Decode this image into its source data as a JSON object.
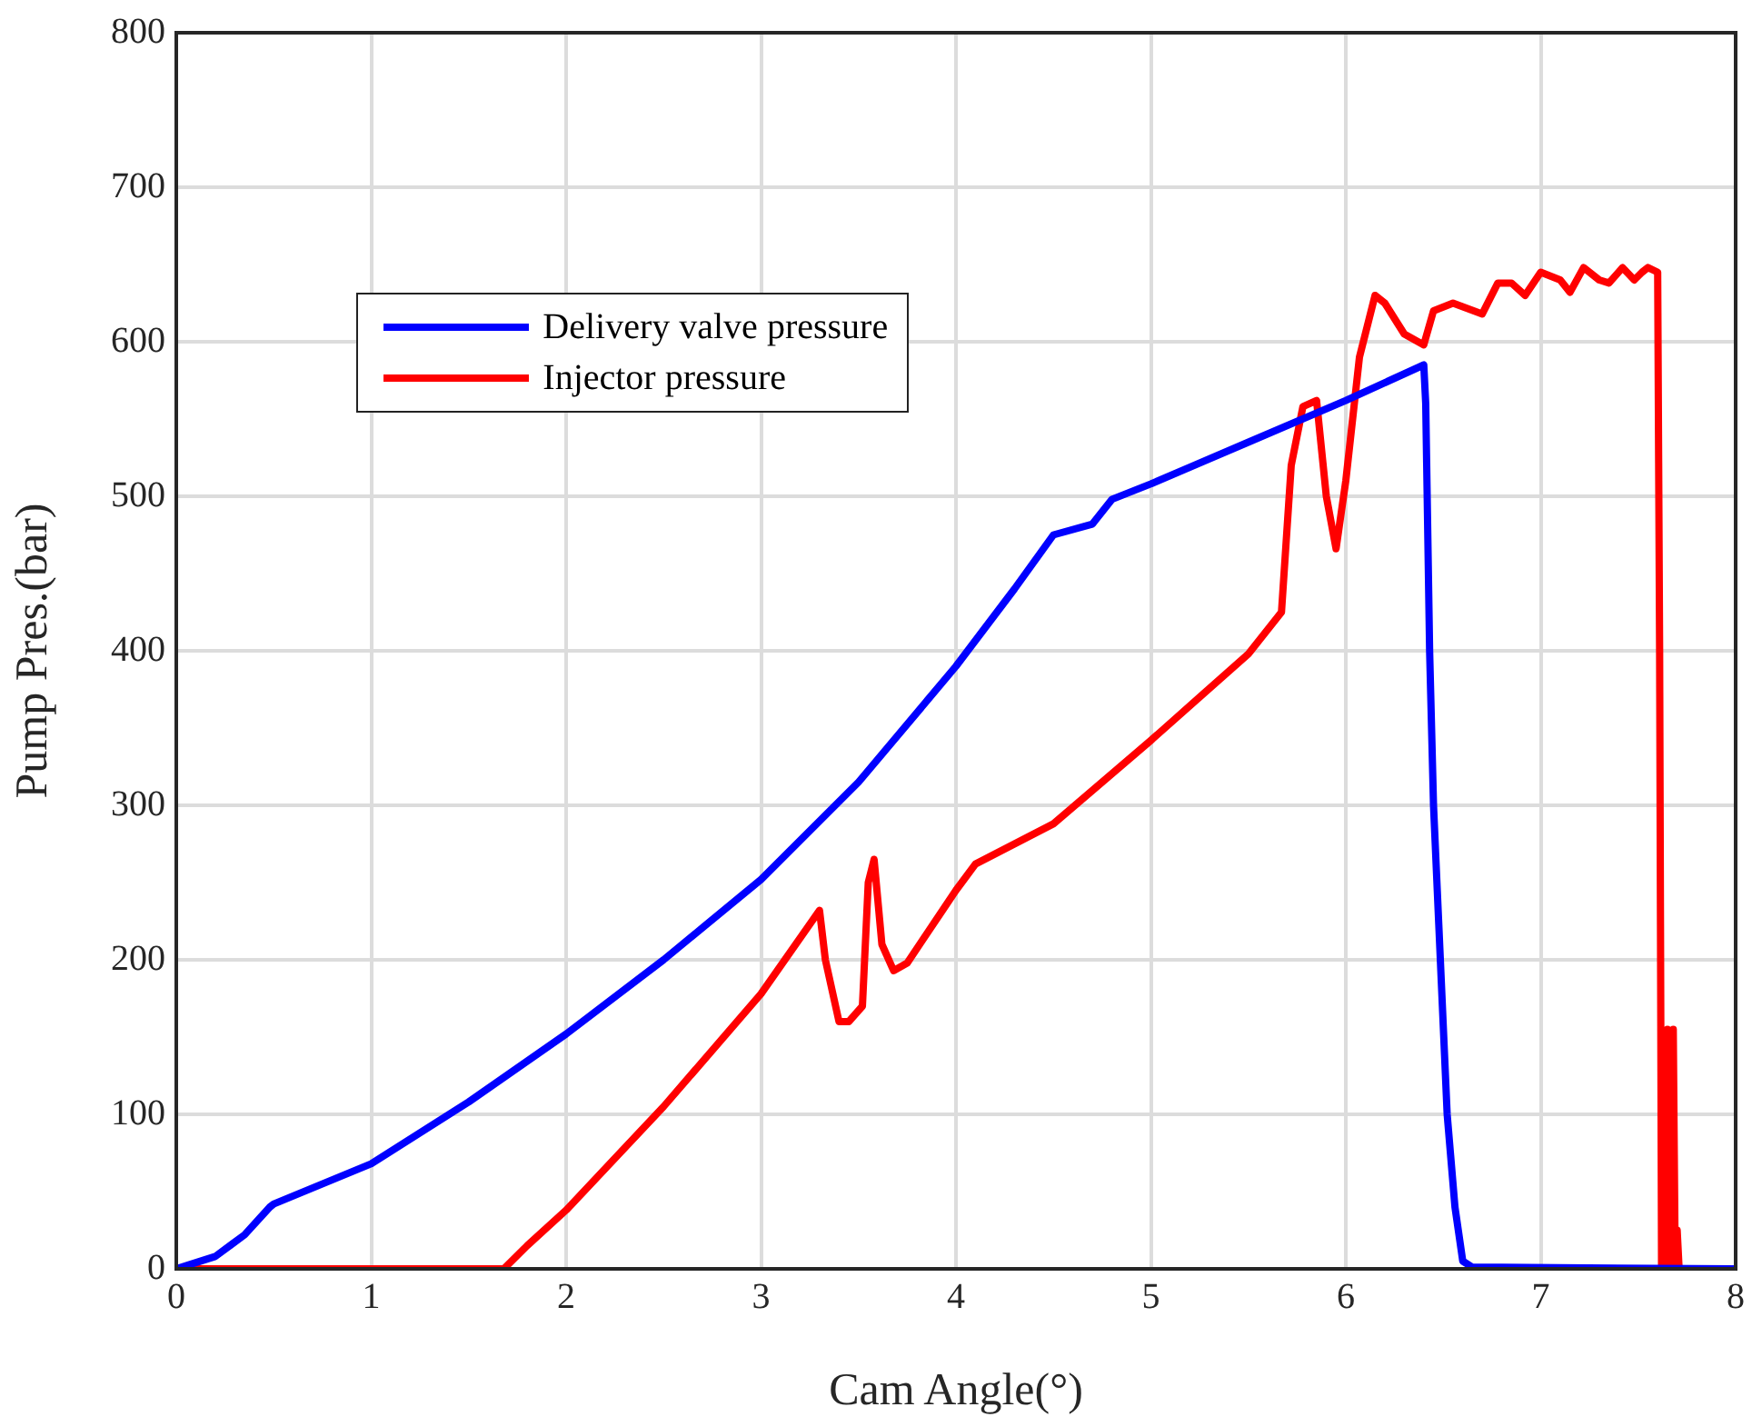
{
  "chart_data": {
    "type": "line",
    "xlabel": "Cam Angle(°)",
    "ylabel": "Pump Pres.(bar)",
    "xlim": [
      0,
      8
    ],
    "xticks": [
      0,
      1,
      2,
      3,
      4,
      5,
      6,
      7,
      8
    ],
    "ylim": [
      0,
      800
    ],
    "yticks": [
      0,
      100,
      200,
      300,
      400,
      500,
      600,
      700,
      800
    ],
    "grid": true,
    "legend": "top left",
    "marker": "none",
    "line_style": "solid",
    "series": [
      {
        "name": "Delivery valve pressure",
        "color": "#0000ff",
        "x": [
          0,
          0.2,
          0.35,
          0.48,
          0.5,
          1,
          1.5,
          2,
          2.5,
          3,
          3.5,
          4,
          4.3,
          4.5,
          4.7,
          4.8,
          5,
          5.5,
          6,
          6.4,
          6.41,
          6.43,
          6.45,
          6.52,
          6.56,
          6.6,
          6.65,
          6.8,
          8
        ],
        "values": [
          0,
          8,
          22,
          40,
          42,
          68,
          108,
          152,
          200,
          252,
          315,
          390,
          440,
          475,
          482,
          498,
          508,
          535,
          562,
          585,
          560,
          400,
          300,
          100,
          40,
          5,
          1,
          1,
          0
        ]
      },
      {
        "name": "Injector pressure",
        "color": "#ff0000",
        "x": [
          0,
          1.68,
          1.8,
          2,
          2.5,
          3,
          3.3,
          3.33,
          3.4,
          3.45,
          3.52,
          3.55,
          3.58,
          3.62,
          3.68,
          3.75,
          4,
          4.1,
          4.5,
          5,
          5.5,
          5.67,
          5.72,
          5.78,
          5.85,
          5.9,
          5.95,
          6,
          6.07,
          6.15,
          6.2,
          6.3,
          6.4,
          6.45,
          6.55,
          6.7,
          6.78,
          6.85,
          6.92,
          7,
          7.1,
          7.15,
          7.22,
          7.3,
          7.35,
          7.42,
          7.48,
          7.52,
          7.55,
          7.6,
          7.61,
          7.62,
          7.64,
          7.65,
          7.67,
          7.68,
          7.69,
          7.7,
          7.71,
          8
        ],
        "values": [
          0,
          0,
          15,
          38,
          105,
          178,
          232,
          200,
          160,
          160,
          170,
          250,
          265,
          210,
          193,
          198,
          245,
          262,
          288,
          342,
          398,
          425,
          520,
          558,
          562,
          500,
          466,
          510,
          590,
          630,
          625,
          605,
          598,
          620,
          625,
          618,
          638,
          638,
          630,
          645,
          640,
          632,
          648,
          640,
          638,
          648,
          640,
          645,
          648,
          645,
          400,
          0,
          0,
          155,
          0,
          155,
          0,
          25,
          0,
          0
        ]
      }
    ]
  }
}
